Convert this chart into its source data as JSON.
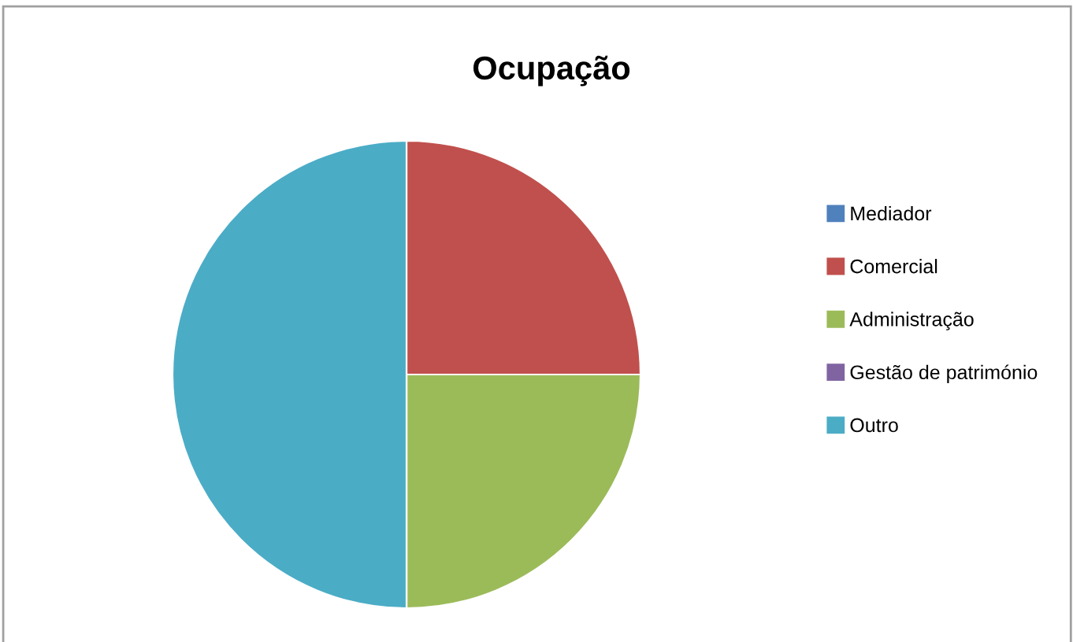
{
  "chart_data": {
    "type": "pie",
    "title": "Ocupação",
    "categories": [
      "Mediador",
      "Comercial",
      "Administração",
      "Gestão de património",
      "Outro"
    ],
    "values": [
      0,
      25,
      25,
      0,
      50
    ],
    "colors": [
      "#4f81bd",
      "#c0504d",
      "#9bbb59",
      "#8064a2",
      "#4bacc6"
    ],
    "legend": "right"
  }
}
